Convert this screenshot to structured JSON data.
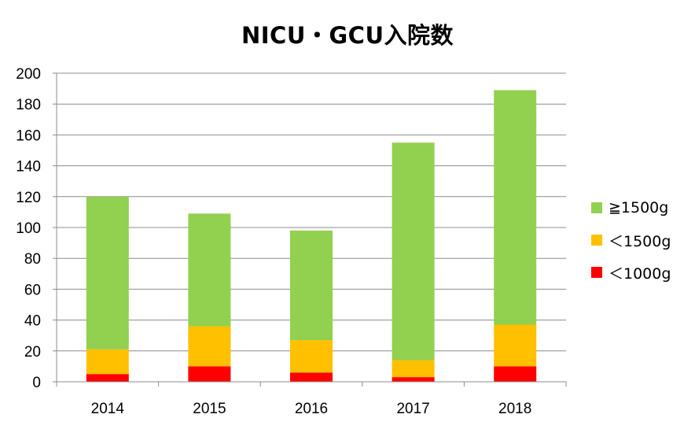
{
  "chart_data": {
    "type": "bar",
    "stacked": true,
    "title": "NICU・GCU入院数",
    "categories": [
      "2014",
      "2015",
      "2016",
      "2017",
      "2018"
    ],
    "series": [
      {
        "name": "＜1000g",
        "color": "#ff0000",
        "values": [
          5,
          10,
          6,
          3,
          10
        ]
      },
      {
        "name": "＜1500g",
        "color": "#ffc000",
        "values": [
          16,
          26,
          21,
          11,
          27
        ]
      },
      {
        "name": "≧1500g",
        "color": "#92d050",
        "values": [
          99,
          73,
          71,
          141,
          152
        ]
      }
    ],
    "ylim": [
      0,
      200
    ],
    "yticks": [
      0,
      20,
      40,
      60,
      80,
      100,
      120,
      140,
      160,
      180,
      200
    ],
    "grid": true,
    "legend_position": "right"
  }
}
